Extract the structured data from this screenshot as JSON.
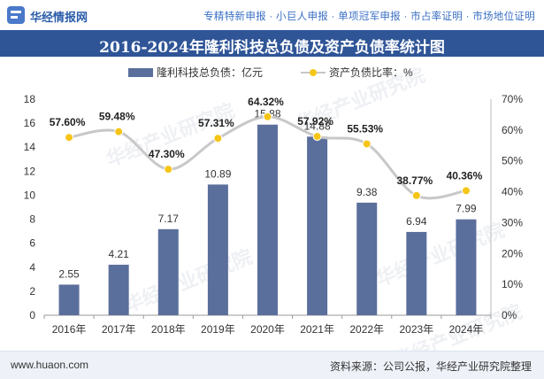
{
  "header": {
    "site_name": "华经情报网",
    "links": "专精特新申报 · 小巨人申报 · 单项冠军申报 · 市占率证明 · 市场地位证明"
  },
  "watermark": "华经产业研究院",
  "chart_data": {
    "type": "bar+line",
    "title": "2016-2024年隆利科技总负债及资产负债率统计图",
    "categories": [
      "2016年",
      "2017年",
      "2018年",
      "2019年",
      "2020年",
      "2021年",
      "2022年",
      "2023年",
      "2024年"
    ],
    "series": [
      {
        "name": "隆利科技总负债：亿元",
        "type": "bar",
        "axis": "left",
        "color": "#5b6f9c",
        "values": [
          2.55,
          4.21,
          7.17,
          10.89,
          15.88,
          14.88,
          9.38,
          6.94,
          7.99
        ],
        "labels": [
          "2.55",
          "4.21",
          "7.17",
          "10.89",
          "15.88",
          "14.88",
          "9.38",
          "6.94",
          "7.99"
        ]
      },
      {
        "name": "资产负债比率：%",
        "type": "line",
        "axis": "right",
        "color": "#f5c518",
        "line_color": "#c8c8c8",
        "values": [
          57.6,
          59.48,
          47.3,
          57.31,
          64.32,
          57.92,
          55.53,
          38.77,
          40.36
        ],
        "labels": [
          "57.60%",
          "59.48%",
          "47.30%",
          "57.31%",
          "64.32%",
          "57.92%",
          "55.53%",
          "38.77%",
          "40.36%"
        ]
      }
    ],
    "y_left": {
      "min": 0,
      "max": 18,
      "ticks": [
        "0",
        "2",
        "4",
        "6",
        "8",
        "10",
        "12",
        "14",
        "16",
        "18"
      ]
    },
    "y_right": {
      "min": 0,
      "max": 70,
      "ticks": [
        "0%",
        "10%",
        "20%",
        "30%",
        "40%",
        "50%",
        "60%",
        "70%"
      ]
    },
    "grid": false,
    "legend_position": "top-center"
  },
  "footer": {
    "website": "www.huaon.com",
    "source": "资料来源：公司公报，华经产业研究院整理"
  }
}
